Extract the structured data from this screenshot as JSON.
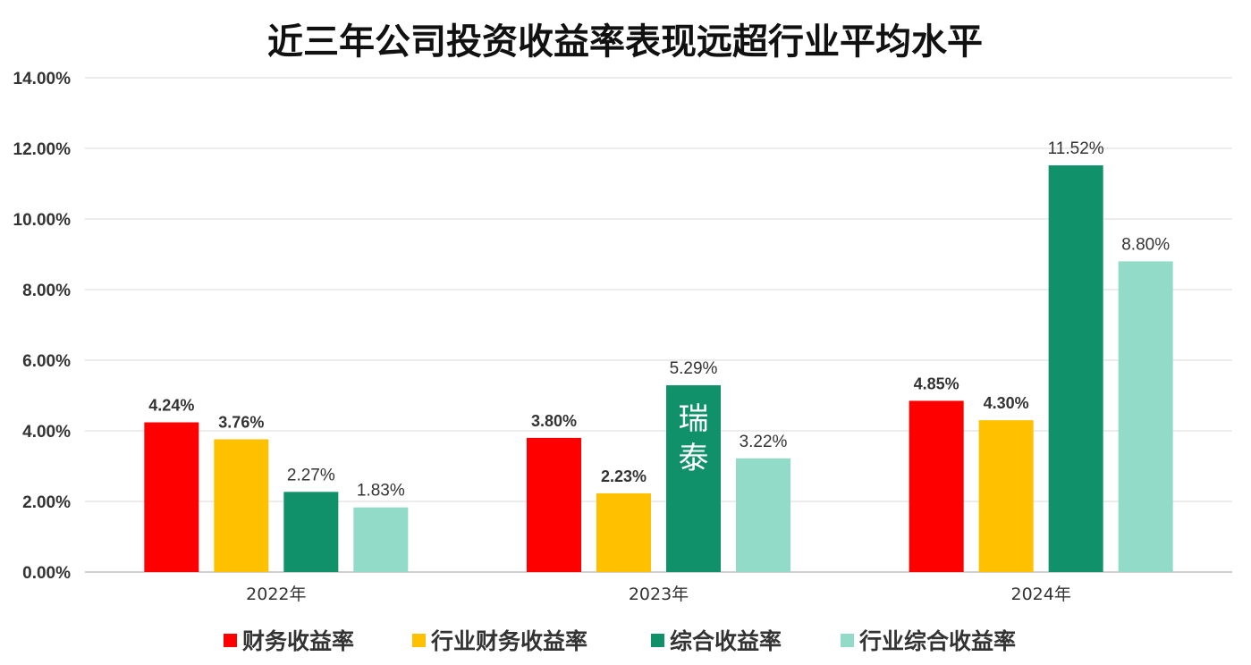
{
  "chart_data": {
    "type": "bar",
    "title": "近三年公司投资收益率表现远超行业平均水平",
    "categories": [
      "2022年",
      "2023年",
      "2024年"
    ],
    "series": [
      {
        "name": "财务收益率",
        "color": "#FF0000",
        "values": [
          4.24,
          3.8,
          4.85
        ],
        "labels": [
          "4.24%",
          "3.80%",
          "4.85%"
        ],
        "label_style": "bold"
      },
      {
        "name": "行业财务收益率",
        "color": "#FFC000",
        "values": [
          3.76,
          2.23,
          4.3
        ],
        "labels": [
          "3.76%",
          "2.23%",
          "4.30%"
        ],
        "label_style": "bold"
      },
      {
        "name": "综合收益率",
        "color": "#119169",
        "values": [
          2.27,
          5.29,
          11.52
        ],
        "labels": [
          "2.27%",
          "5.29%",
          "11.52%"
        ],
        "label_style": "normal"
      },
      {
        "name": "行业综合收益率",
        "color": "#92DBC8",
        "values": [
          1.83,
          3.22,
          8.8
        ],
        "labels": [
          "1.83%",
          "3.22%",
          "8.80%"
        ],
        "label_style": "normal"
      }
    ],
    "ylim": [
      0,
      14
    ],
    "yticks": [
      "0.00%",
      "2.00%",
      "4.00%",
      "6.00%",
      "8.00%",
      "10.00%",
      "12.00%",
      "14.00%"
    ],
    "grid": true,
    "legend_position": "bottom",
    "annotation": {
      "text": "瑞泰",
      "series_index": 2,
      "category_index": 1
    }
  }
}
